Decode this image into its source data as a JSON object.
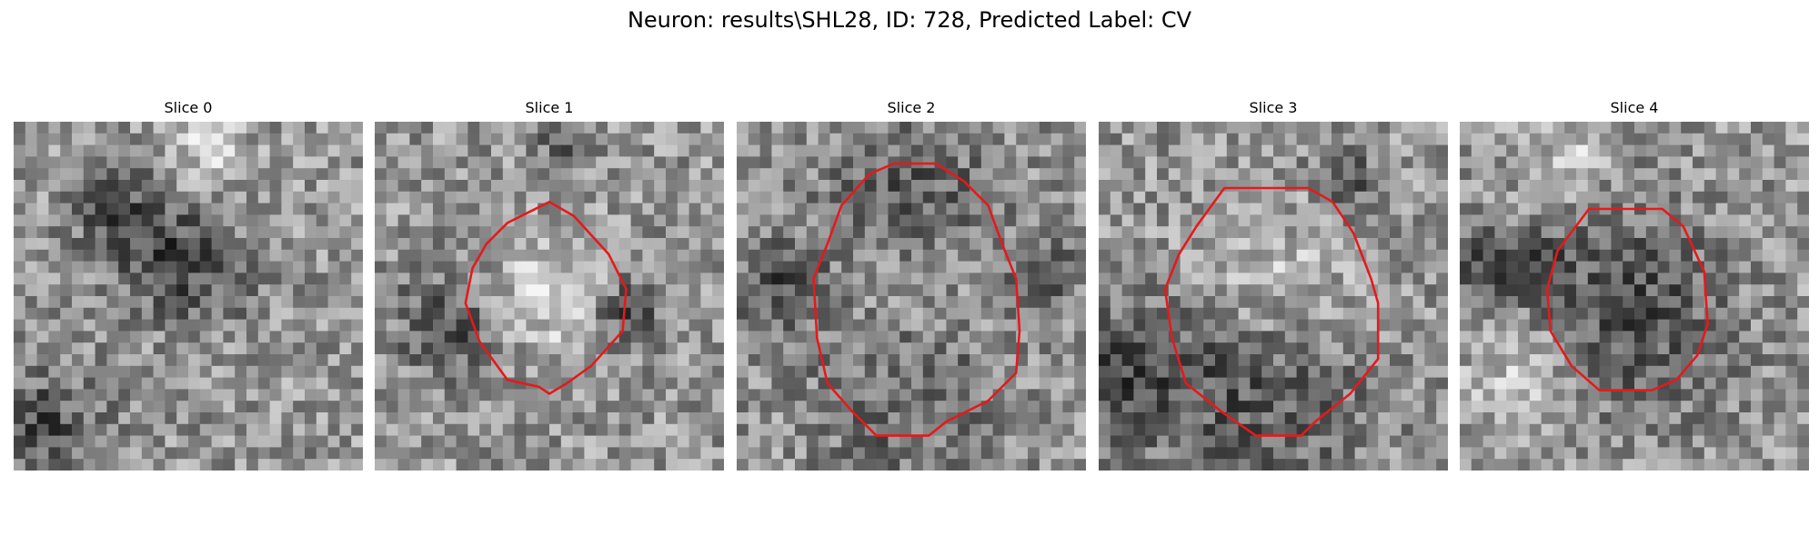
{
  "title": "Neuron: results\\SHL28, ID: 728, Predicted Label: CV",
  "colors": {
    "contour": "#e41a1c"
  },
  "panels": [
    {
      "label": "Slice 0",
      "contour": [],
      "dark_spots": [
        [
          0.08,
          0.88,
          0.12
        ],
        [
          0.5,
          0.42,
          0.12
        ],
        [
          0.32,
          0.28,
          0.1
        ]
      ],
      "bright_spots": [
        [
          0.55,
          0.08,
          0.08
        ]
      ]
    },
    {
      "label": "Slice 1",
      "contour": [
        [
          0.5,
          0.23
        ],
        [
          0.57,
          0.27
        ],
        [
          0.67,
          0.38
        ],
        [
          0.72,
          0.48
        ],
        [
          0.71,
          0.6
        ],
        [
          0.62,
          0.7
        ],
        [
          0.55,
          0.75
        ],
        [
          0.5,
          0.78
        ],
        [
          0.47,
          0.76
        ],
        [
          0.38,
          0.74
        ],
        [
          0.3,
          0.63
        ],
        [
          0.26,
          0.52
        ],
        [
          0.28,
          0.42
        ],
        [
          0.32,
          0.35
        ],
        [
          0.38,
          0.29
        ],
        [
          0.44,
          0.26
        ]
      ],
      "dark_spots": [
        [
          0.2,
          0.58,
          0.1
        ],
        [
          0.72,
          0.55,
          0.07
        ],
        [
          0.55,
          0.07,
          0.05
        ]
      ],
      "bright_spots": [
        [
          0.5,
          0.5,
          0.12
        ]
      ]
    },
    {
      "label": "Slice 2",
      "contour": [
        [
          0.38,
          0.15
        ],
        [
          0.45,
          0.12
        ],
        [
          0.57,
          0.12
        ],
        [
          0.65,
          0.17
        ],
        [
          0.72,
          0.24
        ],
        [
          0.76,
          0.35
        ],
        [
          0.8,
          0.45
        ],
        [
          0.81,
          0.6
        ],
        [
          0.8,
          0.72
        ],
        [
          0.72,
          0.8
        ],
        [
          0.6,
          0.86
        ],
        [
          0.55,
          0.9
        ],
        [
          0.4,
          0.9
        ],
        [
          0.33,
          0.83
        ],
        [
          0.26,
          0.75
        ],
        [
          0.23,
          0.62
        ],
        [
          0.22,
          0.45
        ],
        [
          0.26,
          0.35
        ],
        [
          0.3,
          0.24
        ]
      ],
      "dark_spots": [
        [
          0.12,
          0.48,
          0.1
        ],
        [
          0.88,
          0.45,
          0.07
        ],
        [
          0.5,
          0.25,
          0.18
        ],
        [
          0.5,
          0.72,
          0.2
        ]
      ],
      "bright_spots": [
        [
          0.5,
          0.5,
          0.2
        ]
      ]
    },
    {
      "label": "Slice 3",
      "contour": [
        [
          0.36,
          0.19
        ],
        [
          0.45,
          0.19
        ],
        [
          0.6,
          0.19
        ],
        [
          0.67,
          0.23
        ],
        [
          0.73,
          0.32
        ],
        [
          0.78,
          0.45
        ],
        [
          0.8,
          0.52
        ],
        [
          0.8,
          0.68
        ],
        [
          0.72,
          0.78
        ],
        [
          0.62,
          0.86
        ],
        [
          0.58,
          0.9
        ],
        [
          0.45,
          0.9
        ],
        [
          0.35,
          0.83
        ],
        [
          0.25,
          0.75
        ],
        [
          0.21,
          0.62
        ],
        [
          0.19,
          0.48
        ],
        [
          0.23,
          0.38
        ],
        [
          0.28,
          0.3
        ]
      ],
      "dark_spots": [
        [
          0.08,
          0.72,
          0.12
        ],
        [
          0.7,
          0.17,
          0.06
        ],
        [
          0.45,
          0.75,
          0.22
        ]
      ],
      "bright_spots": [
        [
          0.5,
          0.48,
          0.16
        ]
      ]
    },
    {
      "label": "Slice 4",
      "contour": [
        [
          0.37,
          0.25
        ],
        [
          0.45,
          0.25
        ],
        [
          0.58,
          0.25
        ],
        [
          0.64,
          0.3
        ],
        [
          0.7,
          0.43
        ],
        [
          0.71,
          0.58
        ],
        [
          0.68,
          0.67
        ],
        [
          0.62,
          0.74
        ],
        [
          0.55,
          0.77
        ],
        [
          0.4,
          0.77
        ],
        [
          0.32,
          0.7
        ],
        [
          0.26,
          0.6
        ],
        [
          0.25,
          0.48
        ],
        [
          0.28,
          0.37
        ]
      ],
      "dark_spots": [
        [
          0.48,
          0.55,
          0.2
        ],
        [
          0.08,
          0.43,
          0.07
        ],
        [
          0.2,
          0.42,
          0.07
        ]
      ],
      "bright_spots": [
        [
          0.2,
          0.72,
          0.12
        ],
        [
          0.32,
          0.1,
          0.07
        ]
      ]
    }
  ]
}
